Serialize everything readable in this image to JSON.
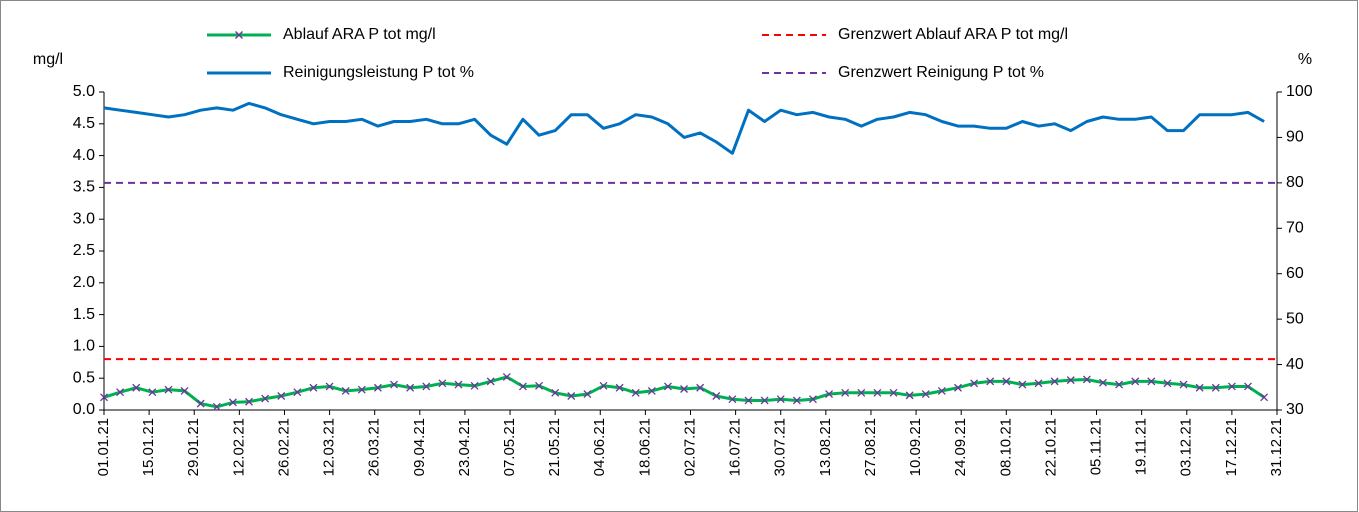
{
  "chart_data": {
    "type": "line",
    "y_label": "mg/l",
    "y2_label": "%",
    "x": [
      "01.01.21",
      "06.01.21",
      "11.01.21",
      "16.01.21",
      "21.01.21",
      "26.01.21",
      "31.01.21",
      "05.02.21",
      "10.02.21",
      "15.02.21",
      "20.02.21",
      "25.02.21",
      "02.03.21",
      "07.03.21",
      "12.03.21",
      "17.03.21",
      "22.03.21",
      "27.03.21",
      "01.04.21",
      "06.04.21",
      "11.04.21",
      "16.04.21",
      "21.04.21",
      "26.04.21",
      "01.05.21",
      "06.05.21",
      "11.05.21",
      "16.05.21",
      "21.05.21",
      "26.05.21",
      "31.05.21",
      "05.06.21",
      "10.06.21",
      "15.06.21",
      "20.06.21",
      "25.06.21",
      "30.06.21",
      "05.07.21",
      "10.07.21",
      "15.07.21",
      "20.07.21",
      "25.07.21",
      "30.07.21",
      "04.08.21",
      "09.08.21",
      "14.08.21",
      "19.08.21",
      "24.08.21",
      "29.08.21",
      "03.09.21",
      "08.09.21",
      "13.09.21",
      "18.09.21",
      "23.09.21",
      "28.09.21",
      "03.10.21",
      "08.10.21",
      "13.10.21",
      "18.10.21",
      "23.10.21",
      "28.10.21",
      "02.11.21",
      "07.11.21",
      "12.11.21",
      "17.11.21",
      "22.11.21",
      "27.11.21",
      "02.12.21",
      "07.12.21",
      "12.12.21",
      "17.12.21",
      "22.12.21",
      "27.12.21"
    ],
    "xlim": [
      "01.01.21",
      "31.12.21"
    ],
    "xticks": [
      "01.01.21",
      "15.01.21",
      "29.01.21",
      "12.02.21",
      "26.02.21",
      "12.03.21",
      "26.03.21",
      "09.04.21",
      "23.04.21",
      "07.05.21",
      "21.05.21",
      "04.06.21",
      "18.06.21",
      "02.07.21",
      "16.07.21",
      "30.07.21",
      "13.08.21",
      "27.08.21",
      "10.09.21",
      "24.09.21",
      "08.10.21",
      "22.10.21",
      "05.11.21",
      "19.11.21",
      "03.12.21",
      "17.12.21",
      "31.12.21"
    ],
    "ylim": [
      0,
      5
    ],
    "yticks": [
      {
        "value": 0,
        "label": "0.0"
      },
      0.5,
      {
        "value": 1,
        "label": "1.0"
      },
      1.5,
      {
        "value": 2,
        "label": "2.0"
      },
      2.5,
      {
        "value": 3,
        "label": "3.0"
      },
      3.5,
      {
        "value": 4,
        "label": "4.0"
      },
      4.5,
      {
        "value": 5,
        "label": "5.0"
      }
    ],
    "y2lim": [
      30,
      100
    ],
    "y2ticks": [
      30,
      40,
      50,
      60,
      70,
      80,
      90,
      100
    ],
    "series": [
      {
        "name": "Ablauf ARA P tot mg/l",
        "color": "#00b050",
        "marker": "x",
        "marker_color": "#7030a0",
        "values": [
          0.2,
          0.28,
          0.35,
          0.28,
          0.32,
          0.3,
          0.1,
          0.05,
          0.12,
          0.13,
          0.18,
          0.22,
          0.28,
          0.35,
          0.37,
          0.3,
          0.32,
          0.35,
          0.4,
          0.35,
          0.37,
          0.42,
          0.4,
          0.38,
          0.45,
          0.52,
          0.37,
          0.38,
          0.27,
          0.22,
          0.25,
          0.38,
          0.35,
          0.27,
          0.3,
          0.37,
          0.33,
          0.35,
          0.22,
          0.17,
          0.15,
          0.15,
          0.17,
          0.15,
          0.17,
          0.25,
          0.27,
          0.27,
          0.27,
          0.27,
          0.23,
          0.25,
          0.3,
          0.35,
          0.42,
          0.45,
          0.45,
          0.4,
          0.42,
          0.45,
          0.47,
          0.48,
          0.43,
          0.4,
          0.45,
          0.45,
          0.42,
          0.4,
          0.35,
          0.35,
          0.37,
          0.37,
          0.2
        ]
      },
      {
        "name": "Grenzwert Ablauf ARA P tot mg/l",
        "color": "#ff0000",
        "dash": true,
        "value": 0.8
      },
      {
        "name": "Reinigungsleistung P tot %",
        "color": "#0070c0",
        "axis": "y2",
        "values": [
          96.5,
          96,
          95.5,
          95,
          94.5,
          95,
          96,
          96.5,
          96,
          97.5,
          96.5,
          95,
          94,
          93,
          93.5,
          93.5,
          94,
          92.5,
          93.5,
          93.5,
          94,
          93,
          93,
          94,
          90.5,
          88.5,
          94,
          90.5,
          91.5,
          95,
          95,
          92,
          93,
          95,
          94.5,
          93,
          90,
          91,
          89,
          86.5,
          96,
          93.5,
          96,
          95,
          95.5,
          94.5,
          94,
          92.5,
          94,
          94.5,
          95.5,
          95,
          93.5,
          92.5,
          92.5,
          92,
          92,
          93.5,
          92.5,
          93,
          91.5,
          93.5,
          94.5,
          94,
          94,
          94.5,
          91.5,
          91.5,
          95,
          95,
          95,
          95.5,
          93.5
        ]
      },
      {
        "name": "Grenzwert Reinigung P tot %",
        "color": "#7030a0",
        "dash": true,
        "axis": "y2",
        "value": 80
      }
    ]
  }
}
